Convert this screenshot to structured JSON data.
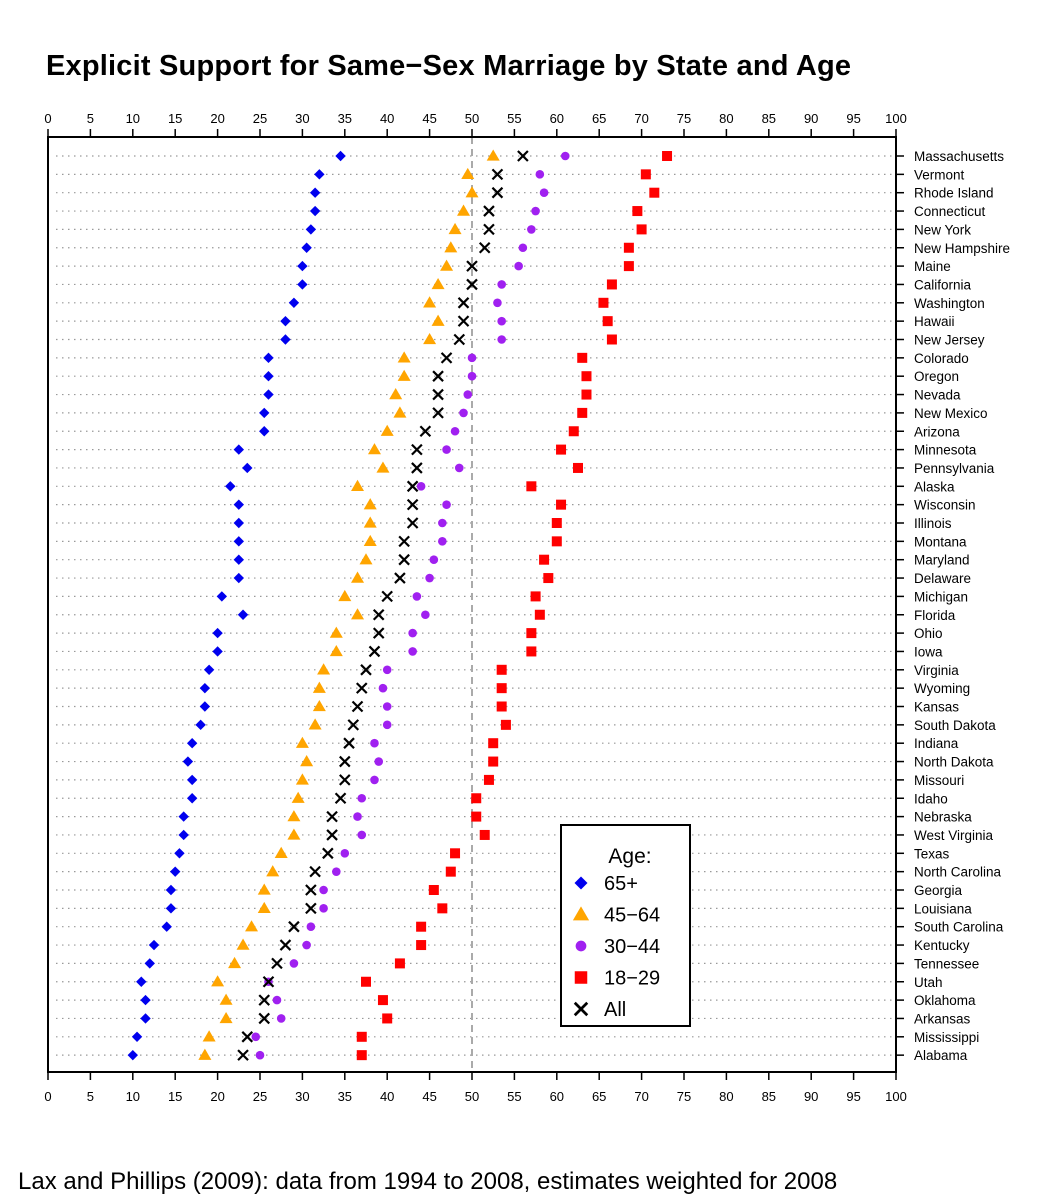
{
  "chart_data": {
    "type": "scatter",
    "title": "Explicit Support for Same−Sex Marriage by State and Age",
    "footer": "Lax and Phillips (2009): data from 1994 to 2008, estimates weighted for 2008",
    "xlim": [
      0,
      100
    ],
    "x_ticks": [
      "0",
      "5",
      "10",
      "15",
      "20",
      "25",
      "30",
      "35",
      "40",
      "45",
      "50",
      "55",
      "60",
      "65",
      "70",
      "75",
      "80",
      "85",
      "90",
      "95",
      "100"
    ],
    "reference_line": 50,
    "legend": {
      "title": "Age:",
      "placement": "bottom-right"
    },
    "series": [
      {
        "key": "s65",
        "name": "65+",
        "marker": "diamond",
        "color": "#0000ee"
      },
      {
        "key": "s45",
        "name": "45−64",
        "marker": "triangle",
        "color": "#ffa500"
      },
      {
        "key": "s30",
        "name": "30−44",
        "marker": "circle",
        "color": "#a020f0"
      },
      {
        "key": "s18",
        "name": "18−29",
        "marker": "square",
        "color": "#ff0000"
      },
      {
        "key": "all",
        "name": "All",
        "marker": "x",
        "color": "#000000"
      }
    ],
    "states": [
      {
        "state": "Massachusetts",
        "s65": 34.5,
        "s45": 52.5,
        "s30": 61,
        "s18": 73,
        "all": 56
      },
      {
        "state": "Vermont",
        "s65": 32,
        "s45": 49.5,
        "s30": 58,
        "s18": 70.5,
        "all": 53
      },
      {
        "state": "Rhode Island",
        "s65": 31.5,
        "s45": 50,
        "s30": 58.5,
        "s18": 71.5,
        "all": 53
      },
      {
        "state": "Connecticut",
        "s65": 31.5,
        "s45": 49,
        "s30": 57.5,
        "s18": 69.5,
        "all": 52
      },
      {
        "state": "New York",
        "s65": 31,
        "s45": 48,
        "s30": 57,
        "s18": 70,
        "all": 52
      },
      {
        "state": "New Hampshire",
        "s65": 30.5,
        "s45": 47.5,
        "s30": 56,
        "s18": 68.5,
        "all": 51.5
      },
      {
        "state": "Maine",
        "s65": 30,
        "s45": 47,
        "s30": 55.5,
        "s18": 68.5,
        "all": 50
      },
      {
        "state": "California",
        "s65": 30,
        "s45": 46,
        "s30": 53.5,
        "s18": 66.5,
        "all": 50
      },
      {
        "state": "Washington",
        "s65": 29,
        "s45": 45,
        "s30": 53,
        "s18": 65.5,
        "all": 49
      },
      {
        "state": "Hawaii",
        "s65": 28,
        "s45": 46,
        "s30": 53.5,
        "s18": 66,
        "all": 49
      },
      {
        "state": "New Jersey",
        "s65": 28,
        "s45": 45,
        "s30": 53.5,
        "s18": 66.5,
        "all": 48.5
      },
      {
        "state": "Colorado",
        "s65": 26,
        "s45": 42,
        "s30": 50,
        "s18": 63,
        "all": 47
      },
      {
        "state": "Oregon",
        "s65": 26,
        "s45": 42,
        "s30": 50,
        "s18": 63.5,
        "all": 46
      },
      {
        "state": "Nevada",
        "s65": 26,
        "s45": 41,
        "s30": 49.5,
        "s18": 63.5,
        "all": 46
      },
      {
        "state": "New Mexico",
        "s65": 25.5,
        "s45": 41.5,
        "s30": 49,
        "s18": 63,
        "all": 46
      },
      {
        "state": "Arizona",
        "s65": 25.5,
        "s45": 40,
        "s30": 48,
        "s18": 62,
        "all": 44.5
      },
      {
        "state": "Minnesota",
        "s65": 22.5,
        "s45": 38.5,
        "s30": 47,
        "s18": 60.5,
        "all": 43.5
      },
      {
        "state": "Pennsylvania",
        "s65": 23.5,
        "s45": 39.5,
        "s30": 48.5,
        "s18": 62.5,
        "all": 43.5
      },
      {
        "state": "Alaska",
        "s65": 21.5,
        "s45": 36.5,
        "s30": 44,
        "s18": 57,
        "all": 43
      },
      {
        "state": "Wisconsin",
        "s65": 22.5,
        "s45": 38,
        "s30": 47,
        "s18": 60.5,
        "all": 43
      },
      {
        "state": "Illinois",
        "s65": 22.5,
        "s45": 38,
        "s30": 46.5,
        "s18": 60,
        "all": 43
      },
      {
        "state": "Montana",
        "s65": 22.5,
        "s45": 38,
        "s30": 46.5,
        "s18": 60,
        "all": 42
      },
      {
        "state": "Maryland",
        "s65": 22.5,
        "s45": 37.5,
        "s30": 45.5,
        "s18": 58.5,
        "all": 42
      },
      {
        "state": "Delaware",
        "s65": 22.5,
        "s45": 36.5,
        "s30": 45,
        "s18": 59,
        "all": 41.5
      },
      {
        "state": "Michigan",
        "s65": 20.5,
        "s45": 35,
        "s30": 43.5,
        "s18": 57.5,
        "all": 40
      },
      {
        "state": "Florida",
        "s65": 23,
        "s45": 36.5,
        "s30": 44.5,
        "s18": 58,
        "all": 39
      },
      {
        "state": "Ohio",
        "s65": 20,
        "s45": 34,
        "s30": 43,
        "s18": 57,
        "all": 39
      },
      {
        "state": "Iowa",
        "s65": 20,
        "s45": 34,
        "s30": 43,
        "s18": 57,
        "all": 38.5
      },
      {
        "state": "Virginia",
        "s65": 19,
        "s45": 32.5,
        "s30": 40,
        "s18": 53.5,
        "all": 37.5
      },
      {
        "state": "Wyoming",
        "s65": 18.5,
        "s45": 32,
        "s30": 39.5,
        "s18": 53.5,
        "all": 37
      },
      {
        "state": "Kansas",
        "s65": 18.5,
        "s45": 32,
        "s30": 40,
        "s18": 53.5,
        "all": 36.5
      },
      {
        "state": "South Dakota",
        "s65": 18,
        "s45": 31.5,
        "s30": 40,
        "s18": 54,
        "all": 36
      },
      {
        "state": "Indiana",
        "s65": 17,
        "s45": 30,
        "s30": 38.5,
        "s18": 52.5,
        "all": 35.5
      },
      {
        "state": "North Dakota",
        "s65": 16.5,
        "s45": 30.5,
        "s30": 39,
        "s18": 52.5,
        "all": 35
      },
      {
        "state": "Missouri",
        "s65": 17,
        "s45": 30,
        "s30": 38.5,
        "s18": 52,
        "all": 35
      },
      {
        "state": "Idaho",
        "s65": 17,
        "s45": 29.5,
        "s30": 37,
        "s18": 50.5,
        "all": 34.5
      },
      {
        "state": "Nebraska",
        "s65": 16,
        "s45": 29,
        "s30": 36.5,
        "s18": 50.5,
        "all": 33.5
      },
      {
        "state": "West Virginia",
        "s65": 16,
        "s45": 29,
        "s30": 37,
        "s18": 51.5,
        "all": 33.5
      },
      {
        "state": "Texas",
        "s65": 15.5,
        "s45": 27.5,
        "s30": 35,
        "s18": 48,
        "all": 33
      },
      {
        "state": "North Carolina",
        "s65": 15,
        "s45": 26.5,
        "s30": 34,
        "s18": 47.5,
        "all": 31.5
      },
      {
        "state": "Georgia",
        "s65": 14.5,
        "s45": 25.5,
        "s30": 32.5,
        "s18": 45.5,
        "all": 31
      },
      {
        "state": "Louisiana",
        "s65": 14.5,
        "s45": 25.5,
        "s30": 32.5,
        "s18": 46.5,
        "all": 31
      },
      {
        "state": "South Carolina",
        "s65": 14,
        "s45": 24,
        "s30": 31,
        "s18": 44,
        "all": 29
      },
      {
        "state": "Kentucky",
        "s65": 12.5,
        "s45": 23,
        "s30": 30.5,
        "s18": 44,
        "all": 28
      },
      {
        "state": "Tennessee",
        "s65": 12,
        "s45": 22,
        "s30": 29,
        "s18": 41.5,
        "all": 27
      },
      {
        "state": "Utah",
        "s65": 11,
        "s45": 20,
        "s30": 26,
        "s18": 37.5,
        "all": 26
      },
      {
        "state": "Oklahoma",
        "s65": 11.5,
        "s45": 21,
        "s30": 27,
        "s18": 39.5,
        "all": 25.5
      },
      {
        "state": "Arkansas",
        "s65": 11.5,
        "s45": 21,
        "s30": 27.5,
        "s18": 40,
        "all": 25.5
      },
      {
        "state": "Mississippi",
        "s65": 10.5,
        "s45": 19,
        "s30": 24.5,
        "s18": 37,
        "all": 23.5
      },
      {
        "state": "Alabama",
        "s65": 10,
        "s45": 18.5,
        "s30": 25,
        "s18": 37,
        "all": 23
      }
    ]
  }
}
